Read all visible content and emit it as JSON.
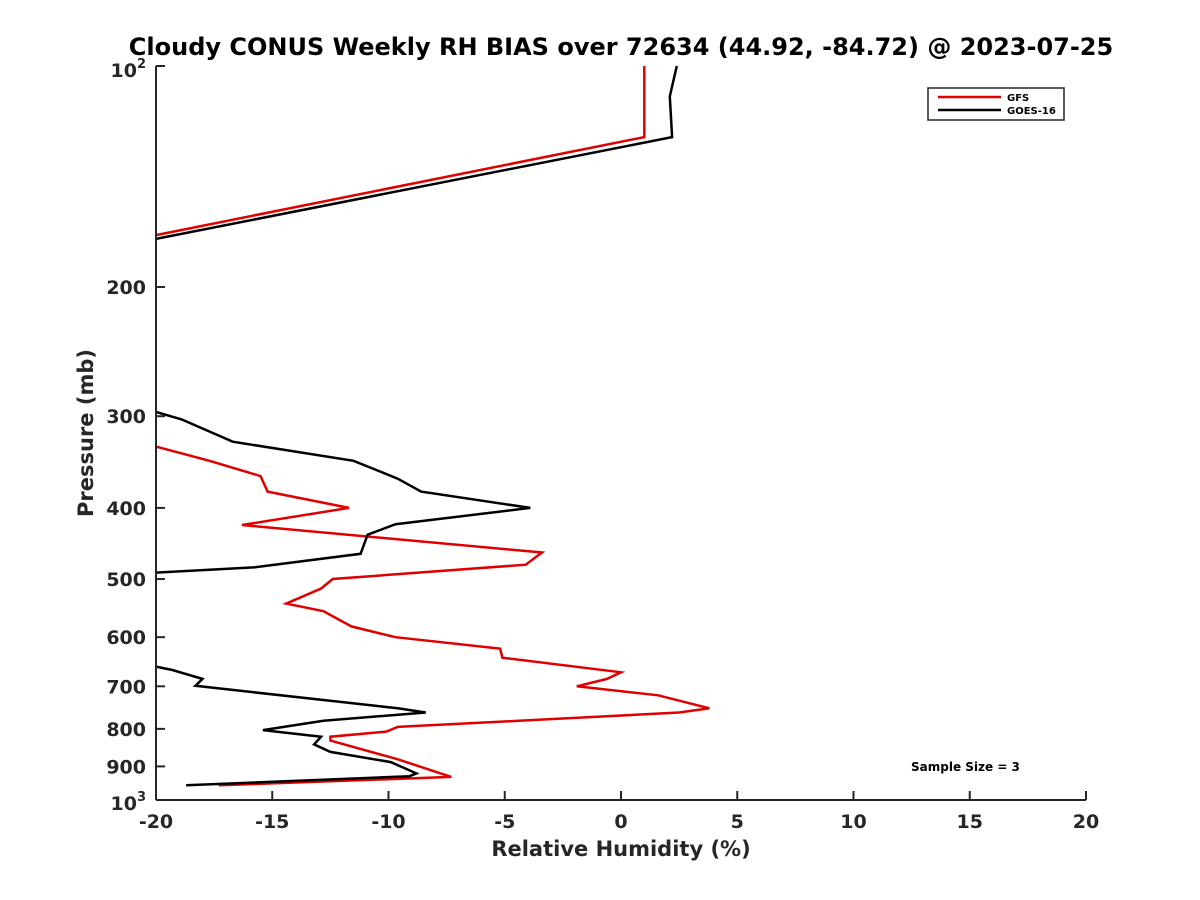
{
  "chart_data": {
    "type": "line",
    "title": "Cloudy CONUS Weekly RH BIAS over 72634 (44.92, -84.72) @ 2023-07-25",
    "xlabel": "Relative Humidity (%)",
    "ylabel": "Pressure (mb)",
    "xlim": [
      -20,
      20
    ],
    "ylim": [
      100,
      1000
    ],
    "yscale": "log",
    "yreversed": true,
    "x_ticks": [
      "-20",
      "-15",
      "-10",
      "-5",
      "0",
      "5",
      "10",
      "15",
      "20"
    ],
    "y_ticks": [
      "200",
      "300",
      "400",
      "500",
      "600",
      "700",
      "800",
      "900"
    ],
    "y_tick_top": {
      "base": "10",
      "exp": "2"
    },
    "y_tick_bottom": {
      "base": "10",
      "exp": "3"
    },
    "legend_position": "top-right",
    "annotation": "Sample Size = 3",
    "series": [
      {
        "name": "GFS",
        "color": "#e00000",
        "points": [
          [
            1.0,
            100
          ],
          [
            1.0,
            125
          ],
          [
            -20,
            170
          ],
          [
            null,
            null
          ],
          [
            -20,
            330
          ],
          [
            -17.7,
            345
          ],
          [
            -15.5,
            362
          ],
          [
            -15.2,
            380
          ],
          [
            -11.7,
            400
          ],
          [
            -16.3,
            422
          ],
          [
            -3.4,
            460
          ],
          [
            -4.1,
            478
          ],
          [
            -12.4,
            500
          ],
          [
            -12.9,
            515
          ],
          [
            -14.4,
            540
          ],
          [
            -12.8,
            553
          ],
          [
            -11.6,
            580
          ],
          [
            -9.7,
            600
          ],
          [
            -5.2,
            622
          ],
          [
            -5.1,
            640
          ],
          [
            0.0,
            670
          ],
          [
            -0.6,
            684
          ],
          [
            -1.9,
            700
          ],
          [
            1.6,
            720
          ],
          [
            3.8,
            750
          ],
          [
            2.5,
            760
          ],
          [
            -4.4,
            780
          ],
          [
            -9.6,
            795
          ],
          [
            -10.1,
            807
          ],
          [
            -12.5,
            820
          ],
          [
            -12.5,
            830
          ],
          [
            -9.6,
            880
          ],
          [
            -7.3,
            930
          ],
          [
            -17.3,
            955
          ]
        ]
      },
      {
        "name": "GOES-16",
        "color": "#000000",
        "points": [
          [
            2.4,
            100
          ],
          [
            2.1,
            110
          ],
          [
            2.2,
            125
          ],
          [
            -20,
            172
          ],
          [
            null,
            null
          ],
          [
            -20,
            296
          ],
          [
            -18.9,
            303
          ],
          [
            -16.7,
            325
          ],
          [
            -11.5,
            345
          ],
          [
            -9.6,
            365
          ],
          [
            -8.6,
            380
          ],
          [
            -3.9,
            400
          ],
          [
            -9.7,
            421
          ],
          [
            -10.9,
            435
          ],
          [
            -11.2,
            462
          ],
          [
            -15.8,
            482
          ],
          [
            -20,
            490
          ],
          [
            null,
            null
          ],
          [
            -20,
            658
          ],
          [
            -19.3,
            665
          ],
          [
            -18.0,
            684
          ],
          [
            -18.3,
            699
          ],
          [
            -9.6,
            750
          ],
          [
            -8.4,
            760
          ],
          [
            -12.8,
            780
          ],
          [
            -15.4,
            803
          ],
          [
            -12.9,
            820
          ],
          [
            -13.2,
            840
          ],
          [
            -12.5,
            860
          ],
          [
            -9.9,
            888
          ],
          [
            -8.8,
            920
          ],
          [
            -9.1,
            928
          ],
          [
            -18.7,
            955
          ]
        ]
      }
    ]
  }
}
